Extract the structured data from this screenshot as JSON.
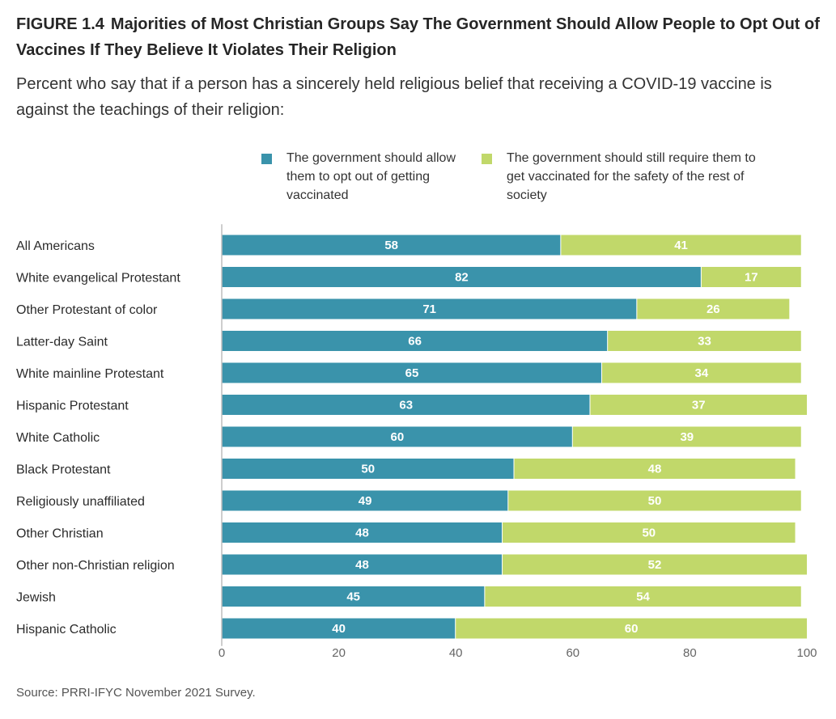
{
  "figure_label": "FIGURE 1.4",
  "source": "Source: PRRI-IFYC November 2021 Survey.",
  "colors": {
    "opt_out": "#3a93ab",
    "require": "#c1d86a",
    "axis": "#bdbdbd"
  },
  "chart_data": {
    "type": "bar",
    "orientation": "horizontal",
    "stacked": true,
    "title": "Majorities of Most Christian Groups Say The Government Should Allow People to Opt Out of Vaccines If They Believe It Violates Their Religion",
    "subtitle": "Percent who say that if a person has a sincerely held religious belief that receiving a COVID-19 vaccine is against the teachings of their religion:",
    "categories": [
      "All Americans",
      "White evangelical Protestant",
      "Other Protestant of color",
      "Latter-day Saint",
      "White mainline Protestant",
      "Hispanic Protestant",
      "White Catholic",
      "Black Protestant",
      "Religiously unaffiliated",
      "Other Christian",
      "Other non-Christian religion",
      "Jewish",
      "Hispanic Catholic"
    ],
    "series": [
      {
        "name": "The government should allow them to opt out of getting vaccinated",
        "values": [
          58,
          82,
          71,
          66,
          65,
          63,
          60,
          50,
          49,
          48,
          48,
          45,
          40
        ]
      },
      {
        "name": "The government should still require them to get vaccinated for the safety of the rest of society",
        "values": [
          41,
          17,
          26,
          33,
          34,
          37,
          39,
          48,
          50,
          50,
          52,
          54,
          60
        ]
      }
    ],
    "xlim": [
      0,
      100
    ],
    "xticks": [
      0,
      20,
      40,
      60,
      80,
      100
    ],
    "grid": false,
    "legend_position": "top"
  }
}
